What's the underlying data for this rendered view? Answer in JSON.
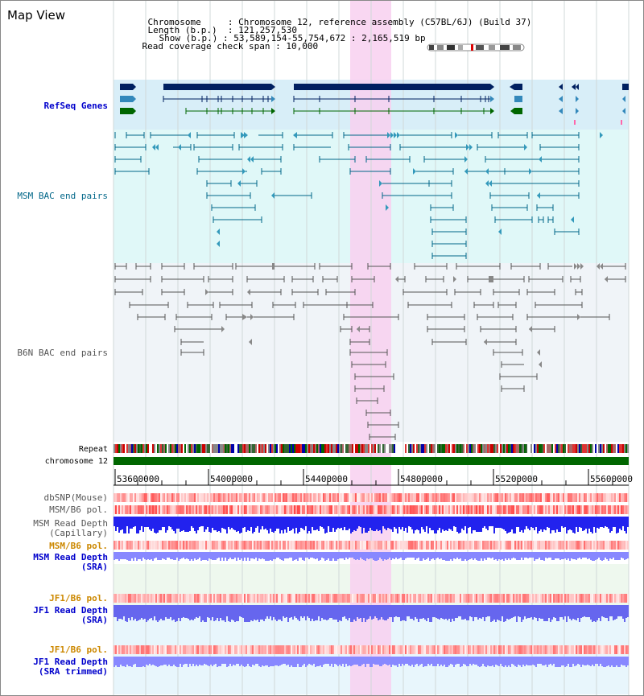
{
  "title": "Map View",
  "info": {
    "chromosome_label": "Chromosome",
    "chromosome_value": "Chromosome 12, reference assembly (C57BL/6J) (Build 37)",
    "length_label": "Length (b.p.)",
    "length_value": "121,257,530",
    "show_label": "Show (b.p.)",
    "show_value": "53,589,154-55,754,672 : 2,165,519 bp",
    "coverage_label": "Read coverage check span",
    "coverage_value": "10,000"
  },
  "tracks": {
    "refseq": "RefSeq Genes",
    "msm_bac": "MSM BAC end pairs",
    "b6n_bac": "B6N BAC end pairs",
    "repeat": "Repeat",
    "chromosome": "chromosome 12",
    "dbsnp": "dbSNP(Mouse)",
    "msm_b6_pol": "MSM/B6 pol.",
    "msm_depth_cap_1": "MSM Read Depth",
    "msm_depth_cap_2": "(Capillary)",
    "msm_b6_pol_2": "MSM/B6 pol.",
    "msm_depth_sra_1": "MSM Read Depth",
    "msm_depth_sra_2": "(SRA)",
    "jf1_b6_pol": "JF1/B6 pol.",
    "jf1_depth_sra_1": "JF1 Read Depth",
    "jf1_depth_sra_2": "(SRA)",
    "jf1_b6_pol_2": "JF1/B6 pol.",
    "jf1_depth_trim_1": "JF1 Read Depth",
    "jf1_depth_trim_2": "(SRA trimmed)"
  },
  "axis": {
    "ticks": [
      "53600000",
      "54000000",
      "54400000",
      "54800000",
      "55200000",
      "55600000"
    ]
  },
  "colors": {
    "highlight": "#f8d0f0",
    "refseq_bg": "#d8eef8",
    "msm_bg": "#e0f8f8",
    "b6n_bg": "#f0f4f8",
    "gene_dark": "#002060",
    "gene_mid": "#3388bb",
    "gene_green": "#006600",
    "msm_pair": "#006688",
    "b6n_pair": "#555555",
    "chrom_bar": "#006600",
    "depth_blue": "#2222ee",
    "depth_light": "#8888ff",
    "pol_red": "#ff6666"
  }
}
